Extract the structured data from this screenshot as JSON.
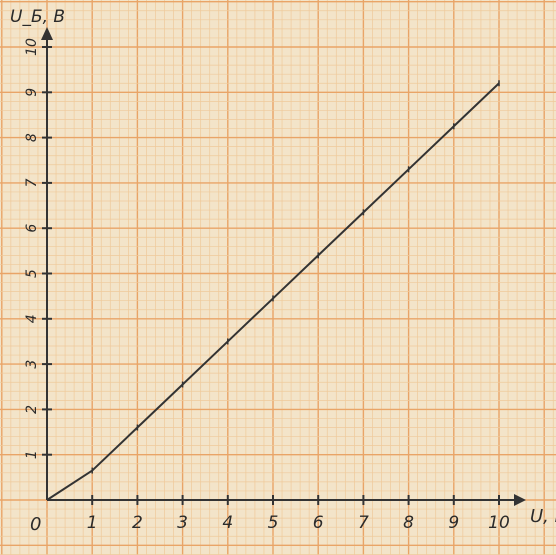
{
  "chart_data": {
    "type": "line",
    "xlabel": "U, B",
    "ylabel": "U_Б, B",
    "origin_label": "0",
    "xlim": [
      0,
      10
    ],
    "ylim": [
      0,
      10
    ],
    "x_ticks": [
      1,
      2,
      3,
      4,
      5,
      6,
      7,
      8,
      9,
      10
    ],
    "y_ticks": [
      1,
      2,
      3,
      4,
      5,
      6,
      7,
      8,
      9,
      10
    ],
    "x_tick_labels": [
      "1",
      "2",
      "3",
      "4",
      "5",
      "6",
      "7",
      "8",
      "9",
      "10"
    ],
    "y_tick_labels": [
      "1",
      "2",
      "3",
      "4",
      "5",
      "6",
      "7",
      "8",
      "9",
      "10"
    ],
    "grid": true,
    "series": [
      {
        "x": [
          0,
          1,
          2,
          3,
          4,
          5,
          6,
          7,
          8,
          9,
          10
        ],
        "y": [
          0,
          0.65,
          1.6,
          2.55,
          3.5,
          4.45,
          5.4,
          6.35,
          7.3,
          8.25,
          9.2
        ],
        "color": "#333333"
      }
    ]
  },
  "colors": {
    "paper": "#f3e4c9",
    "grid_major": "#e9a467",
    "grid_minor": "#efc99a",
    "ink": "#333333"
  }
}
